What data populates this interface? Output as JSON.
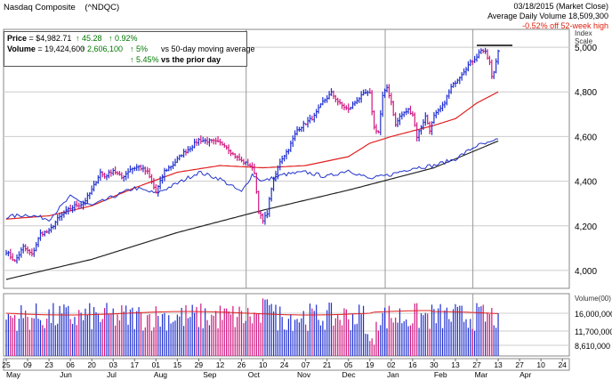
{
  "header": {
    "title": "Nasdaq Composite",
    "symbol": "(^NDQC)",
    "date": "03/18/2015 (Market Close)",
    "avg_volume": "Average Daily Volume 18,509,300",
    "off_high": "-0.52% off 52-week high"
  },
  "info": {
    "price_label": "Price",
    "price_value": "= $4,982.71",
    "price_change": "↑ 45.28",
    "price_pct": "↑ 0.92%",
    "volume_label": "Volume",
    "volume_value": "= 19,424,600",
    "volume_change": "↑ 2,606,100",
    "vs50_pct": "↑ 5%",
    "vs50_text": "vs 50-day moving average",
    "prior_pct": "↑ 5.45%",
    "prior_text": "vs the prior day"
  },
  "colors": {
    "up": "#1f2fd0",
    "down": "#d0167f",
    "ma50": "#e02020",
    "ma200": "#222222",
    "rel": "#2233cc",
    "grid": "#cccccc"
  },
  "chart_data": {
    "type": "line",
    "price_axis": {
      "label": "Index Scale",
      "ticks": [
        4000,
        4200,
        4400,
        4600,
        4800,
        5000
      ],
      "ylim": [
        3920,
        5080
      ]
    },
    "volume_axis": {
      "label": "Volume(00)",
      "ticks": [
        "16,000,000",
        "11,700,000",
        "8,610,000"
      ]
    },
    "x_ticks": [
      {
        "label": "25",
        "d": 0
      },
      {
        "label": "09",
        "d": 10
      },
      {
        "label": "23",
        "d": 20
      },
      {
        "label": "06",
        "d": 30
      },
      {
        "label": "20",
        "d": 40
      },
      {
        "label": "03",
        "d": 50
      },
      {
        "label": "17",
        "d": 60
      },
      {
        "label": "01",
        "d": 70
      },
      {
        "label": "15",
        "d": 80
      },
      {
        "label": "29",
        "d": 90
      },
      {
        "label": "12",
        "d": 100
      },
      {
        "label": "26",
        "d": 110
      },
      {
        "label": "10",
        "d": 120
      },
      {
        "label": "24",
        "d": 130
      },
      {
        "label": "07",
        "d": 140
      },
      {
        "label": "21",
        "d": 150
      },
      {
        "label": "05",
        "d": 160
      },
      {
        "label": "19",
        "d": 170
      },
      {
        "label": "02",
        "d": 180
      },
      {
        "label": "16",
        "d": 190
      },
      {
        "label": "30",
        "d": 200
      },
      {
        "label": "13",
        "d": 210
      },
      {
        "label": "27",
        "d": 220
      },
      {
        "label": "13",
        "d": 230
      },
      {
        "label": "27",
        "d": 240
      },
      {
        "label": "10",
        "d": 250
      },
      {
        "label": "24",
        "d": 260
      }
    ],
    "month_labels": [
      {
        "label": "May",
        "d": 0
      },
      {
        "label": "Jun",
        "d": 25
      },
      {
        "label": "Jul",
        "d": 47
      },
      {
        "label": "Aug",
        "d": 69
      },
      {
        "label": "Sep",
        "d": 92
      },
      {
        "label": "Oct",
        "d": 113
      },
      {
        "label": "Nov",
        "d": 136
      },
      {
        "label": "Dec",
        "d": 157
      },
      {
        "label": "Jan",
        "d": 178
      },
      {
        "label": "Feb",
        "d": 200
      },
      {
        "label": "Mar",
        "d": 219
      },
      {
        "label": "Apr",
        "d": 240
      }
    ],
    "month_separators": [
      113,
      178,
      219
    ],
    "last_day": 230,
    "high_52w": 5008,
    "close_anchors": [
      [
        0,
        4085
      ],
      [
        4,
        4040
      ],
      [
        8,
        4105
      ],
      [
        12,
        4070
      ],
      [
        16,
        4165
      ],
      [
        20,
        4175
      ],
      [
        24,
        4230
      ],
      [
        28,
        4265
      ],
      [
        32,
        4290
      ],
      [
        36,
        4300
      ],
      [
        40,
        4360
      ],
      [
        44,
        4440
      ],
      [
        46,
        4420
      ],
      [
        50,
        4450
      ],
      [
        54,
        4415
      ],
      [
        58,
        4455
      ],
      [
        62,
        4465
      ],
      [
        66,
        4440
      ],
      [
        70,
        4350
      ],
      [
        74,
        4445
      ],
      [
        78,
        4475
      ],
      [
        82,
        4520
      ],
      [
        86,
        4550
      ],
      [
        90,
        4585
      ],
      [
        94,
        4580
      ],
      [
        98,
        4575
      ],
      [
        102,
        4565
      ],
      [
        106,
        4520
      ],
      [
        110,
        4490
      ],
      [
        114,
        4470
      ],
      [
        116,
        4440
      ],
      [
        118,
        4265
      ],
      [
        120,
        4220
      ],
      [
        122,
        4260
      ],
      [
        124,
        4370
      ],
      [
        128,
        4490
      ],
      [
        132,
        4545
      ],
      [
        136,
        4630
      ],
      [
        140,
        4660
      ],
      [
        144,
        4690
      ],
      [
        148,
        4755
      ],
      [
        152,
        4795
      ],
      [
        156,
        4745
      ],
      [
        160,
        4720
      ],
      [
        164,
        4765
      ],
      [
        168,
        4795
      ],
      [
        170,
        4790
      ],
      [
        172,
        4640
      ],
      [
        174,
        4620
      ],
      [
        176,
        4780
      ],
      [
        178,
        4820
      ],
      [
        180,
        4755
      ],
      [
        182,
        4650
      ],
      [
        184,
        4690
      ],
      [
        188,
        4720
      ],
      [
        190,
        4700
      ],
      [
        192,
        4600
      ],
      [
        196,
        4690
      ],
      [
        198,
        4630
      ],
      [
        200,
        4690
      ],
      [
        204,
        4735
      ],
      [
        208,
        4820
      ],
      [
        212,
        4870
      ],
      [
        216,
        4920
      ],
      [
        220,
        4960
      ],
      [
        222,
        4990
      ],
      [
        224,
        4975
      ],
      [
        226,
        4930
      ],
      [
        227,
        4865
      ],
      [
        228,
        4890
      ],
      [
        229,
        4937
      ],
      [
        230,
        4983
      ]
    ],
    "ma50_anchors": [
      [
        0,
        4230
      ],
      [
        20,
        4245
      ],
      [
        40,
        4290
      ],
      [
        60,
        4370
      ],
      [
        80,
        4440
      ],
      [
        100,
        4470
      ],
      [
        120,
        4460
      ],
      [
        140,
        4470
      ],
      [
        160,
        4510
      ],
      [
        170,
        4570
      ],
      [
        180,
        4600
      ],
      [
        200,
        4650
      ],
      [
        210,
        4680
      ],
      [
        220,
        4750
      ],
      [
        230,
        4800
      ]
    ],
    "ma200_anchors": [
      [
        0,
        3960
      ],
      [
        40,
        4050
      ],
      [
        80,
        4170
      ],
      [
        120,
        4270
      ],
      [
        160,
        4360
      ],
      [
        200,
        4460
      ],
      [
        230,
        4580
      ]
    ],
    "rel_anchors": [
      [
        0,
        4240
      ],
      [
        10,
        4250
      ],
      [
        20,
        4230
      ],
      [
        30,
        4330
      ],
      [
        40,
        4290
      ],
      [
        50,
        4330
      ],
      [
        60,
        4370
      ],
      [
        70,
        4345
      ],
      [
        80,
        4390
      ],
      [
        90,
        4440
      ],
      [
        100,
        4410
      ],
      [
        110,
        4350
      ],
      [
        115,
        4430
      ],
      [
        120,
        4400
      ],
      [
        130,
        4430
      ],
      [
        140,
        4440
      ],
      [
        150,
        4420
      ],
      [
        160,
        4450
      ],
      [
        170,
        4410
      ],
      [
        180,
        4430
      ],
      [
        190,
        4460
      ],
      [
        200,
        4470
      ],
      [
        210,
        4500
      ],
      [
        220,
        4560
      ],
      [
        226,
        4570
      ],
      [
        230,
        4585
      ]
    ]
  }
}
